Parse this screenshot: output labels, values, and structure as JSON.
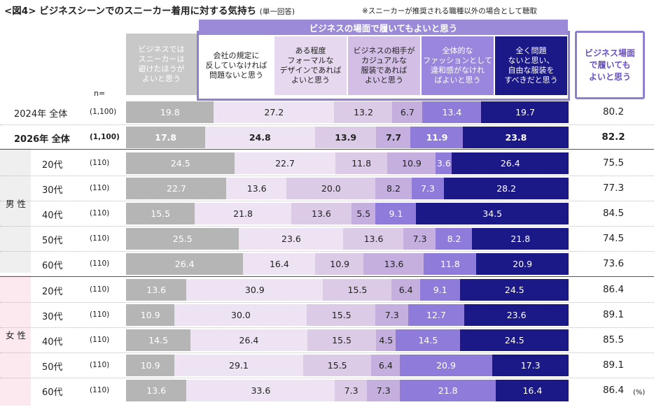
{
  "title": "<図4> ビジネスシーンでのスニーカー着用に対する気持ち",
  "subtitle": "(単一回答)",
  "note": "※スニーカーが推奨される職種以外の場合として聴取",
  "group_label": "ビジネスの場面で履いてもよいと思う",
  "total_header": "ビジネス場面\nで履いても\nよいと思う",
  "n_label": "n=",
  "percent_unit": "(%)",
  "gender_labels": {
    "male": "男\n性",
    "female": "女\n性"
  },
  "chart_data": {
    "type": "bar",
    "orientation": "horizontal",
    "stacked": true,
    "title": "ビジネスシーンでのスニーカー着用に対する気持ち",
    "categories": [
      "ビジネスではスニーカーは避けたほうがよいと思う",
      "会社の規定に反していなければ問題ないと思う",
      "ある程度フォーマルなデザインであればよいと思う",
      "ビジネスの相手がカジュアルな服装であればよいと思う",
      "全体的なファッションとして違和感がなければよいと思う",
      "全く問題ないと思い、自由な服装をすべきだと思う"
    ],
    "category_labels": [
      "ビジネスでは\nスニーカーは\n避けたほうが\nよいと思う",
      "会社の規定に\n反していなければ\n問題ないと思う",
      "ある程度\nフォーマルな\nデザインであれば\nよいと思う",
      "ビジネスの相手が\nカジュアルな\n服装であれば\nよいと思う",
      "全体的な\nファッションとして\n違和感がなけれ\nばよいと思う",
      "全く問題\nないと思い、\n自由な服装を\nすべきだと思う"
    ],
    "colors": [
      "#b5b5b5",
      "#ede3f2",
      "#dccbe6",
      "#c4afde",
      "#8f7bd9",
      "#1b1887"
    ],
    "text_colors": [
      "#ffffff",
      "#222222",
      "#222222",
      "#222222",
      "#ffffff",
      "#ffffff"
    ],
    "header_colors": [
      "#c8c8c8",
      "#ffffff",
      "#e6d9ef",
      "#d3bfe6",
      "#9a86dc",
      "#1b1887"
    ],
    "header_text_colors": [
      "#ffffff",
      "#222222",
      "#222222",
      "#222222",
      "#ffffff",
      "#ffffff"
    ],
    "xlim": [
      0,
      100
    ],
    "unit": "%",
    "rows": [
      {
        "label": "2024年 全体",
        "n": "(1,100)",
        "values": [
          19.8,
          27.2,
          13.2,
          6.7,
          13.4,
          19.7
        ],
        "total": "80.2",
        "bold": false
      },
      {
        "label": "2026年 全体",
        "n": "(1,100)",
        "values": [
          17.8,
          24.8,
          13.9,
          7.7,
          11.9,
          23.8
        ],
        "total": "82.2",
        "bold": true
      },
      {
        "label": "20代",
        "n": "(110)",
        "values": [
          24.5,
          22.7,
          11.8,
          10.9,
          3.6,
          26.4
        ],
        "total": "75.5",
        "bold": false
      },
      {
        "label": "30代",
        "n": "(110)",
        "values": [
          22.7,
          13.6,
          20.0,
          8.2,
          7.3,
          28.2
        ],
        "total": "77.3",
        "bold": false
      },
      {
        "label": "40代",
        "n": "(110)",
        "values": [
          15.5,
          21.8,
          13.6,
          5.5,
          9.1,
          34.5
        ],
        "total": "84.5",
        "bold": false
      },
      {
        "label": "50代",
        "n": "(110)",
        "values": [
          25.5,
          23.6,
          13.6,
          7.3,
          8.2,
          21.8
        ],
        "total": "74.5",
        "bold": false
      },
      {
        "label": "60代",
        "n": "(110)",
        "values": [
          26.4,
          16.4,
          10.9,
          13.6,
          11.8,
          20.9
        ],
        "total": "73.6",
        "bold": false
      },
      {
        "label": "20代",
        "n": "(110)",
        "values": [
          13.6,
          30.9,
          15.5,
          6.4,
          9.1,
          24.5
        ],
        "total": "86.4",
        "bold": false
      },
      {
        "label": "30代",
        "n": "(110)",
        "values": [
          10.9,
          30.0,
          15.5,
          7.3,
          12.7,
          23.6
        ],
        "total": "89.1",
        "bold": false
      },
      {
        "label": "40代",
        "n": "(110)",
        "values": [
          14.5,
          26.4,
          15.5,
          4.5,
          14.5,
          24.5
        ],
        "total": "85.5",
        "bold": false
      },
      {
        "label": "50代",
        "n": "(110)",
        "values": [
          10.9,
          29.1,
          15.5,
          6.4,
          20.9,
          17.3
        ],
        "total": "89.1",
        "bold": false
      },
      {
        "label": "60代",
        "n": "(110)",
        "values": [
          13.6,
          33.6,
          7.3,
          7.3,
          21.8,
          16.4
        ],
        "total": "86.4",
        "bold": false
      }
    ]
  }
}
